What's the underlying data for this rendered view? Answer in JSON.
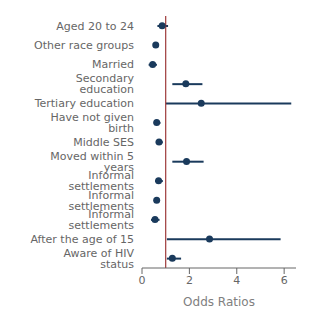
{
  "chart_data": {
    "type": "forest",
    "orientation": "horizontal",
    "categories": [
      "Aged 20 to 24",
      "Other race groups",
      "Married",
      "Secondary education",
      "Tertiary education",
      "Have not given birth",
      "Middle SES",
      "Moved within 5 years",
      "Informal settlements",
      "Informal settlements",
      "Informal settlements",
      "After the age of 15",
      "Aware of HIV status"
    ],
    "values": [
      0.85,
      0.58,
      0.45,
      1.85,
      2.5,
      0.62,
      0.72,
      1.88,
      0.7,
      0.62,
      0.55,
      2.85,
      1.28
    ],
    "ci_low": [
      0.65,
      0.48,
      0.28,
      1.28,
      1.0,
      0.5,
      0.58,
      1.28,
      0.55,
      0.5,
      0.38,
      1.05,
      1.05
    ],
    "ci_high": [
      1.1,
      0.7,
      0.63,
      2.55,
      6.3,
      0.78,
      0.88,
      2.6,
      0.88,
      0.76,
      0.74,
      5.85,
      1.65
    ],
    "color": "#1a3a5c",
    "ref_line": {
      "value": 1.0,
      "color": "#9e3a3a"
    },
    "xlim": [
      0,
      6.5
    ],
    "xticks": [
      0,
      2,
      4,
      6
    ],
    "xlabel": "Odds Ratios",
    "grid": false
  }
}
